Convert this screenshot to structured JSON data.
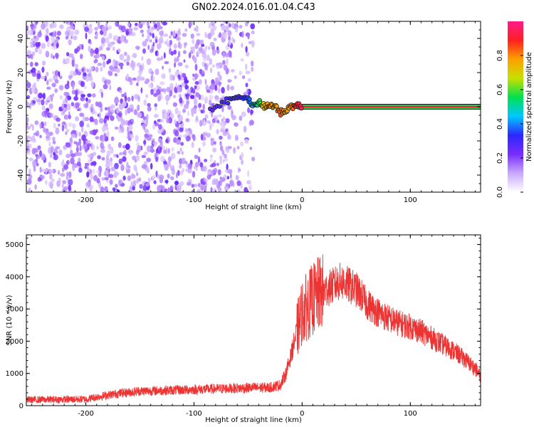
{
  "title": "GN02.2024.016.01.04.C43",
  "colors": {
    "snr_line": "#ee3333",
    "center_line_outer": "#00c800",
    "center_line_inner": "#ff2020",
    "colormap": [
      "#ffffff",
      "#c9a8ff",
      "#7a2cff",
      "#2a28ff",
      "#00c8ff",
      "#00e050",
      "#c8e000",
      "#ffa000",
      "#ff2020",
      "#ff1a8c"
    ]
  },
  "chart_data": [
    {
      "type": "heatmap",
      "xlabel": "Height of straight line (km)",
      "ylabel": "Frequency (Hz)",
      "xlim": [
        -255,
        165
      ],
      "ylim": [
        -50,
        50
      ],
      "x_ticks": [
        -200,
        -100,
        0,
        100
      ],
      "y_ticks": [
        -40,
        -20,
        0,
        20,
        40
      ],
      "noise_region_x": [
        -255,
        -45
      ],
      "signal_track": {
        "x": [
          -85,
          -70,
          -60,
          -50,
          -45,
          -40,
          -35,
          -30,
          -25,
          -20,
          -15,
          -10,
          -5,
          0,
          165
        ],
        "freq": [
          -2,
          3,
          6,
          4,
          1,
          2,
          0,
          0,
          1,
          -3,
          -2,
          0,
          1,
          0,
          0
        ],
        "amplitude": [
          0.25,
          0.3,
          0.3,
          0.35,
          0.45,
          0.55,
          0.75,
          0.8,
          0.75,
          0.85,
          0.75,
          0.8,
          0.9,
          0.95,
          0.95
        ]
      },
      "colorbar": {
        "label": "Normalized spectral amplitude",
        "ticks": [
          0.0,
          0.2,
          0.4,
          0.6,
          0.8
        ],
        "range": [
          0,
          1
        ]
      }
    },
    {
      "type": "line",
      "xlabel": "Height of straight line (km)",
      "ylabel": "SNR (10 * v/v)",
      "xlim": [
        -255,
        165
      ],
      "ylim": [
        0,
        5300
      ],
      "x_ticks": [
        -200,
        -100,
        0,
        100
      ],
      "y_ticks": [
        0,
        1000,
        2000,
        3000,
        4000,
        5000
      ],
      "series": [
        {
          "x": [
            -255,
            -230,
            -200,
            -190,
            -170,
            -150,
            -120,
            -100,
            -80,
            -60,
            -40,
            -30,
            -20,
            -15,
            -10,
            -5,
            0,
            5,
            10,
            15,
            20,
            25,
            30,
            35,
            40,
            45,
            50,
            55,
            60,
            70,
            80,
            90,
            100,
            110,
            120,
            130,
            140,
            150,
            160,
            165
          ],
          "y": [
            180,
            190,
            200,
            270,
            380,
            450,
            480,
            500,
            520,
            540,
            560,
            560,
            650,
            1000,
            1600,
            2300,
            2900,
            3100,
            3300,
            3450,
            3550,
            3650,
            3750,
            3850,
            3800,
            3700,
            3600,
            3400,
            3150,
            2900,
            2700,
            2550,
            2450,
            2300,
            2100,
            1900,
            1700,
            1450,
            1150,
            900
          ]
        }
      ]
    }
  ]
}
